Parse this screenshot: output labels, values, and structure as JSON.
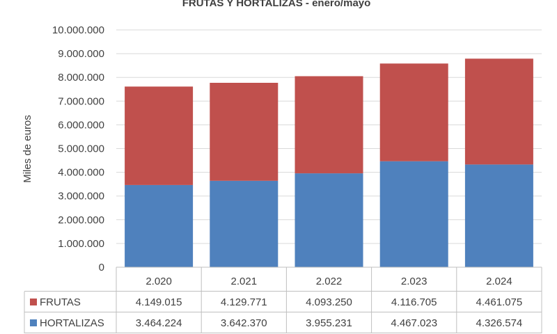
{
  "chart_data": {
    "type": "bar",
    "stacked": true,
    "title": "FRUTAS Y HORTALIZAS - enero/mayo",
    "ylabel": "Miles de euros",
    "ylim": [
      0,
      10000000
    ],
    "yticks": [
      "0",
      "1.000.000",
      "2.000.000",
      "3.000.000",
      "4.000.000",
      "5.000.000",
      "6.000.000",
      "7.000.000",
      "8.000.000",
      "9.000.000",
      "10.000.000"
    ],
    "grid": true,
    "legend": "data-table",
    "categories": [
      "2.020",
      "2.021",
      "2.022",
      "2.023",
      "2.024"
    ],
    "series": [
      {
        "name": "HORTALIZAS",
        "color": "#4f81bd",
        "values": [
          3464224,
          3642370,
          3955231,
          4467023,
          4326574
        ],
        "labels": [
          "3.464.224",
          "3.642.370",
          "3.955.231",
          "4.467.023",
          "4.326.574"
        ]
      },
      {
        "name": "FRUTAS",
        "color": "#c0504d",
        "values": [
          4149015,
          4129771,
          4093250,
          4116705,
          4461075
        ],
        "labels": [
          "4.149.015",
          "4.129.771",
          "4.093.250",
          "4.116.705",
          "4.461.075"
        ]
      }
    ],
    "table_row_order": [
      "FRUTAS",
      "HORTALIZAS"
    ]
  }
}
